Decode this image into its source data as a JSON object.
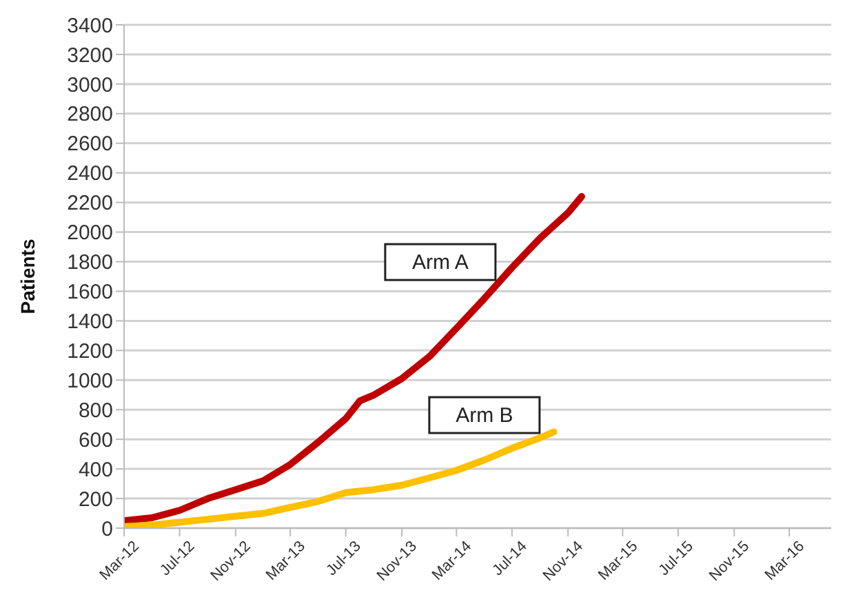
{
  "chart_data": {
    "type": "line",
    "ylabel": "Patients",
    "xlim": [
      "2012-03",
      "2016-06"
    ],
    "xticks": [
      {
        "value": "2012-03",
        "label": "Mar-12"
      },
      {
        "value": "2012-07",
        "label": "Jul-12"
      },
      {
        "value": "2012-11",
        "label": "Nov-12"
      },
      {
        "value": "2013-03",
        "label": "Mar-13"
      },
      {
        "value": "2013-07",
        "label": "Jul-13"
      },
      {
        "value": "2013-11",
        "label": "Nov-13"
      },
      {
        "value": "2014-03",
        "label": "Mar-14"
      },
      {
        "value": "2014-07",
        "label": "Jul-14"
      },
      {
        "value": "2014-11",
        "label": "Nov-14"
      },
      {
        "value": "2015-03",
        "label": "Mar-15"
      },
      {
        "value": "2015-07",
        "label": "Jul-15"
      },
      {
        "value": "2015-11",
        "label": "Nov-15"
      },
      {
        "value": "2016-03",
        "label": "Mar-16"
      }
    ],
    "ylim": [
      0,
      3400
    ],
    "yticks": [
      0,
      200,
      400,
      600,
      800,
      1000,
      1200,
      1400,
      1600,
      1800,
      2000,
      2200,
      2400,
      2600,
      2800,
      3000,
      3200,
      3400
    ],
    "grid": "y",
    "legend": false,
    "marker": "none",
    "line_style": "solid",
    "series": [
      {
        "name": "Arm A",
        "color": "#c00000",
        "x": [
          "2012-03",
          "2012-05",
          "2012-07",
          "2012-09",
          "2012-11",
          "2013-01",
          "2013-03",
          "2013-05",
          "2013-07",
          "2013-08",
          "2013-09",
          "2013-11",
          "2014-01",
          "2014-03",
          "2014-05",
          "2014-07",
          "2014-09",
          "2014-11",
          "2014-12"
        ],
        "values": [
          50,
          70,
          120,
          200,
          260,
          320,
          430,
          580,
          740,
          860,
          900,
          1010,
          1160,
          1350,
          1550,
          1760,
          1960,
          2130,
          2240
        ]
      },
      {
        "name": "Arm B",
        "color": "#ffc000",
        "x": [
          "2012-03",
          "2012-05",
          "2012-07",
          "2012-09",
          "2012-11",
          "2013-01",
          "2013-03",
          "2013-05",
          "2013-07",
          "2013-09",
          "2013-11",
          "2014-01",
          "2014-03",
          "2014-05",
          "2014-07",
          "2014-09",
          "2014-10"
        ],
        "values": [
          10,
          20,
          40,
          60,
          80,
          100,
          140,
          180,
          240,
          260,
          290,
          340,
          390,
          460,
          540,
          610,
          650
        ]
      }
    ]
  }
}
